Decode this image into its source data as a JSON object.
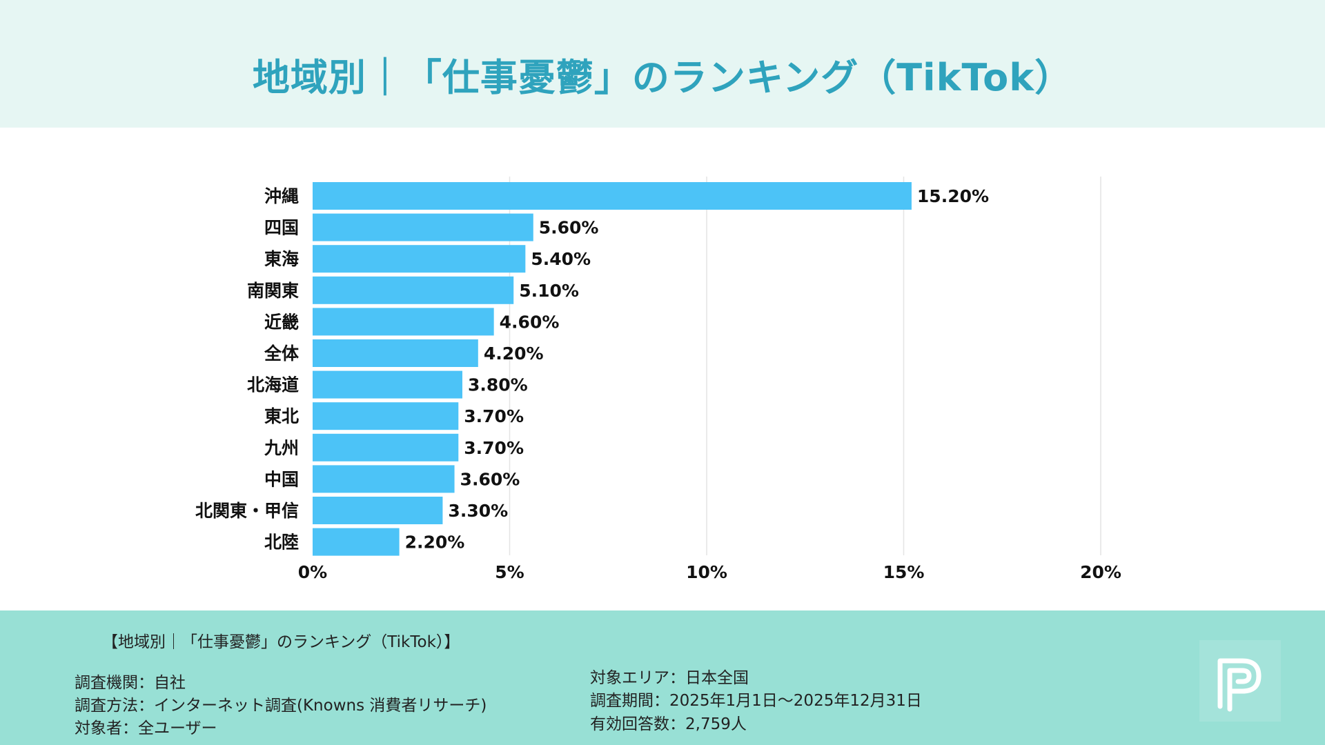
{
  "title": "地域別｜「仕事憂鬱」のランキング（TikTok）",
  "footer": {
    "caption": "【地域別｜「仕事憂鬱」のランキング（TikTok）】",
    "left": [
      "調査機関：自社",
      "調査方法：インターネット調査(Knowns 消費者リサーチ)",
      "対象者：全ユーザー"
    ],
    "right": [
      "対象エリア：日本全国",
      "調査期間：2025年1月1日〜2025年12月31日",
      "有効回答数：2,759人"
    ]
  },
  "colors": {
    "bar": "#4cc3f7",
    "title": "#2fa3bd",
    "header_bg": "#e6f6f3",
    "footer_bg": "#98e0d5"
  },
  "chart_data": {
    "type": "bar",
    "orientation": "horizontal",
    "categories": [
      "沖縄",
      "四国",
      "東海",
      "南関東",
      "近畿",
      "全体",
      "北海道",
      "東北",
      "九州",
      "中国",
      "北関東・甲信",
      "北陸"
    ],
    "values": [
      15.2,
      5.6,
      5.4,
      5.1,
      4.6,
      4.2,
      3.8,
      3.7,
      3.7,
      3.6,
      3.3,
      2.2
    ],
    "data_labels": [
      "15.20%",
      "5.60%",
      "5.40%",
      "5.10%",
      "4.60%",
      "4.20%",
      "3.80%",
      "3.70%",
      "3.70%",
      "3.60%",
      "3.30%",
      "2.20%"
    ],
    "xlim": [
      0,
      20
    ],
    "ticks": [
      0,
      5,
      10,
      15,
      20
    ],
    "tick_labels": [
      "0%",
      "5%",
      "10%",
      "15%",
      "20%"
    ],
    "grid": true,
    "legend": "none"
  }
}
